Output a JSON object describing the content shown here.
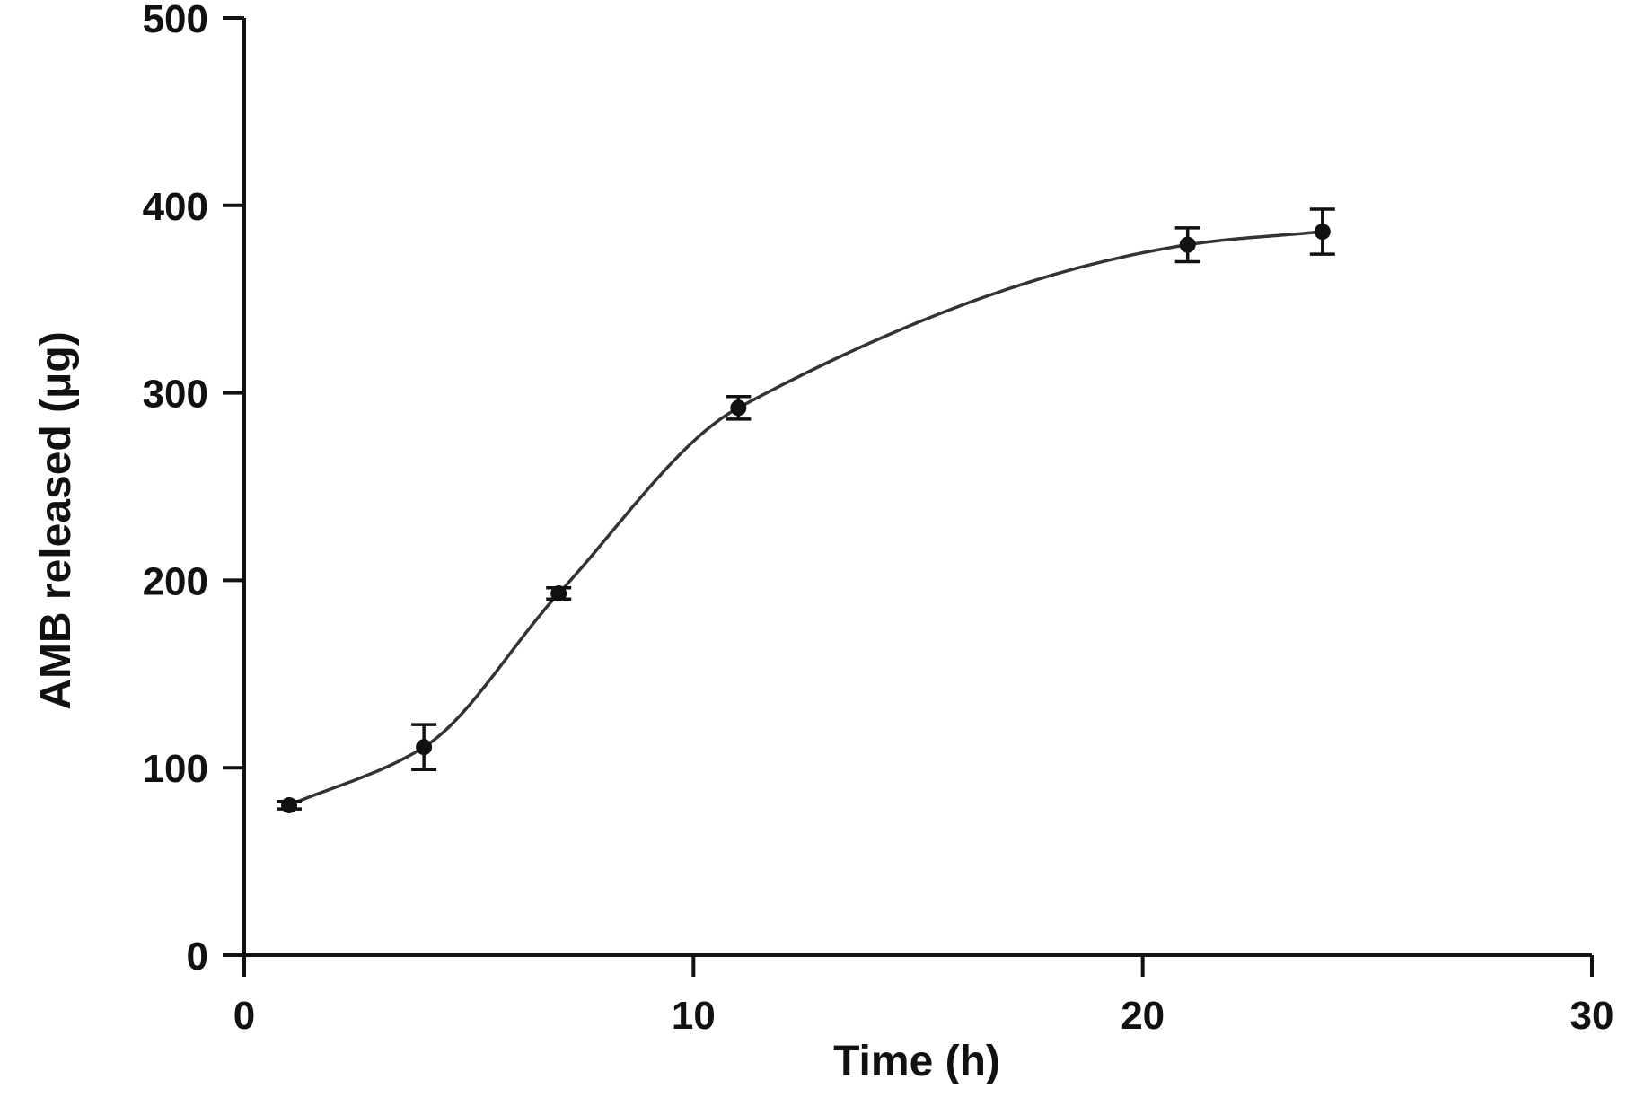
{
  "chart_data": {
    "type": "line",
    "title": "",
    "xlabel": "Time (h)",
    "ylabel": "AMB released (μg)",
    "xlim": [
      0,
      30
    ],
    "ylim": [
      0,
      500
    ],
    "x_ticks": [
      0,
      10,
      20,
      30
    ],
    "y_ticks": [
      0,
      100,
      200,
      300,
      400,
      500
    ],
    "x_tick_labels": [
      "0",
      "10",
      "20",
      "30"
    ],
    "y_tick_labels": [
      "0",
      "100",
      "200",
      "300",
      "400",
      "500"
    ],
    "grid": false,
    "legend": "none",
    "series": [
      {
        "x": [
          1,
          4,
          7,
          11,
          21,
          24
        ],
        "y": [
          80,
          111,
          193,
          292,
          379,
          386
        ],
        "error": [
          2,
          12,
          3,
          6,
          9,
          12
        ],
        "color": "#111111",
        "marker": "circle",
        "fit_curve": "sigmoidal"
      }
    ]
  }
}
